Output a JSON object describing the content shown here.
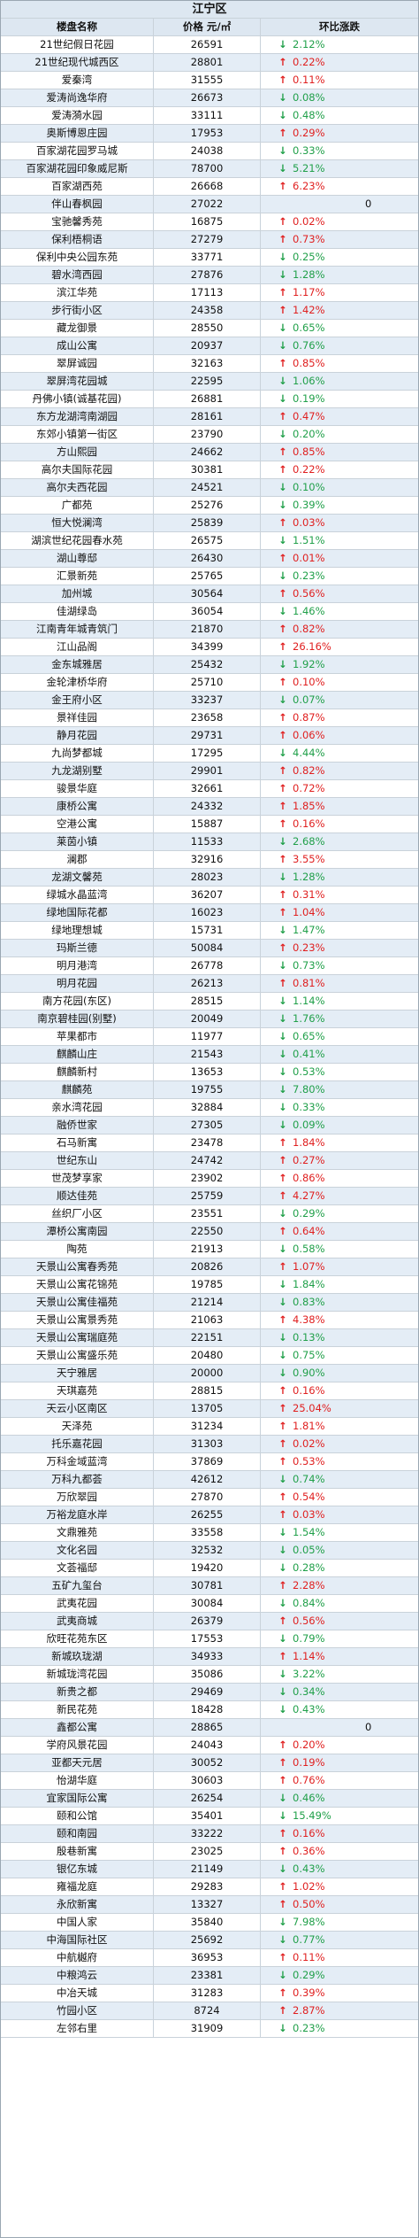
{
  "title": "江宁区",
  "headers": {
    "name": "楼盘名称",
    "price": "价格 元/㎡",
    "change": "环比涨跌"
  },
  "rows": [
    [
      "21世纪假日花园",
      "26591",
      "down",
      "2.12%"
    ],
    [
      "21世纪现代城西区",
      "28801",
      "up",
      "0.22%"
    ],
    [
      "爱秦湾",
      "31555",
      "up",
      "0.11%"
    ],
    [
      "爱涛尚逸华府",
      "26673",
      "down",
      "0.08%"
    ],
    [
      "爱涛漪水园",
      "33111",
      "down",
      "0.48%"
    ],
    [
      "奥斯博恩庄园",
      "17953",
      "up",
      "0.29%"
    ],
    [
      "百家湖花园罗马城",
      "24038",
      "down",
      "0.33%"
    ],
    [
      "百家湖花园印象威尼斯",
      "78700",
      "down",
      "5.21%"
    ],
    [
      "百家湖西苑",
      "26668",
      "up",
      "6.23%"
    ],
    [
      "伴山春枫园",
      "27022",
      "flat",
      "0"
    ],
    [
      "宝驰馨秀苑",
      "16875",
      "up",
      "0.02%"
    ],
    [
      "保利梧桐语",
      "27279",
      "up",
      "0.73%"
    ],
    [
      "保利中央公园东苑",
      "33771",
      "down",
      "0.25%"
    ],
    [
      "碧水湾西园",
      "27876",
      "down",
      "1.28%"
    ],
    [
      "滨江华苑",
      "17113",
      "up",
      "1.17%"
    ],
    [
      "步行街小区",
      "24358",
      "up",
      "1.42%"
    ],
    [
      "藏龙御景",
      "28550",
      "down",
      "0.65%"
    ],
    [
      "成山公寓",
      "20937",
      "down",
      "0.76%"
    ],
    [
      "翠屏诚园",
      "32163",
      "up",
      "0.85%"
    ],
    [
      "翠屏湾花园城",
      "22595",
      "down",
      "1.06%"
    ],
    [
      "丹佛小镇(诚基花园)",
      "26881",
      "down",
      "0.19%"
    ],
    [
      "东方龙湖湾南湖园",
      "28161",
      "up",
      "0.47%"
    ],
    [
      "东郊小镇第一街区",
      "23790",
      "down",
      "0.20%"
    ],
    [
      "方山熙园",
      "24662",
      "up",
      "0.85%"
    ],
    [
      "高尔夫国际花园",
      "30381",
      "up",
      "0.22%"
    ],
    [
      "高尔夫西花园",
      "24521",
      "down",
      "0.10%"
    ],
    [
      "广都苑",
      "25276",
      "down",
      "0.39%"
    ],
    [
      "恒大悦澜湾",
      "25839",
      "up",
      "0.03%"
    ],
    [
      "湖滨世纪花园春水苑",
      "26575",
      "down",
      "1.51%"
    ],
    [
      "湖山尊邸",
      "26430",
      "up",
      "0.01%"
    ],
    [
      "汇景新苑",
      "25765",
      "down",
      "0.23%"
    ],
    [
      "加州城",
      "30564",
      "up",
      "0.56%"
    ],
    [
      "佳湖绿岛",
      "36054",
      "down",
      "1.46%"
    ],
    [
      "江南青年城青筑门",
      "21870",
      "up",
      "0.82%"
    ],
    [
      "江山品阁",
      "34399",
      "up",
      "26.16%"
    ],
    [
      "金东城雅居",
      "25432",
      "down",
      "1.92%"
    ],
    [
      "金轮津桥华府",
      "25710",
      "up",
      "0.10%"
    ],
    [
      "金王府小区",
      "33237",
      "down",
      "0.07%"
    ],
    [
      "景祥佳园",
      "23658",
      "up",
      "0.87%"
    ],
    [
      "静月花园",
      "29731",
      "up",
      "0.06%"
    ],
    [
      "九尚梦都城",
      "17295",
      "down",
      "4.44%"
    ],
    [
      "九龙湖别墅",
      "29901",
      "up",
      "0.82%"
    ],
    [
      "骏景华庭",
      "32661",
      "up",
      "0.72%"
    ],
    [
      "康桥公寓",
      "24332",
      "up",
      "1.85%"
    ],
    [
      "空港公寓",
      "15887",
      "up",
      "0.16%"
    ],
    [
      "莱茵小镇",
      "11533",
      "down",
      "2.68%"
    ],
    [
      "澜郡",
      "32916",
      "up",
      "3.55%"
    ],
    [
      "龙湖文馨苑",
      "28023",
      "down",
      "1.28%"
    ],
    [
      "绿城水晶蓝湾",
      "36207",
      "up",
      "0.31%"
    ],
    [
      "绿地国际花都",
      "16023",
      "up",
      "1.04%"
    ],
    [
      "绿地理想城",
      "15731",
      "down",
      "1.47%"
    ],
    [
      "玛斯兰德",
      "50084",
      "up",
      "0.23%"
    ],
    [
      "明月港湾",
      "26778",
      "down",
      "0.73%"
    ],
    [
      "明月花园",
      "26213",
      "up",
      "0.81%"
    ],
    [
      "南方花园(东区)",
      "28515",
      "down",
      "1.14%"
    ],
    [
      "南京碧桂园(别墅)",
      "20049",
      "down",
      "1.76%"
    ],
    [
      "苹果都市",
      "11977",
      "down",
      "0.65%"
    ],
    [
      "麒麟山庄",
      "21543",
      "down",
      "0.41%"
    ],
    [
      "麒麟新村",
      "13653",
      "down",
      "0.53%"
    ],
    [
      "麒麟苑",
      "19755",
      "down",
      "7.80%"
    ],
    [
      "亲水湾花园",
      "32884",
      "down",
      "0.33%"
    ],
    [
      "融侨世家",
      "27305",
      "down",
      "0.09%"
    ],
    [
      "石马新寓",
      "23478",
      "up",
      "1.84%"
    ],
    [
      "世纪东山",
      "24742",
      "up",
      "0.27%"
    ],
    [
      "世茂梦享家",
      "23902",
      "up",
      "0.86%"
    ],
    [
      "顺达佳苑",
      "25759",
      "up",
      "4.27%"
    ],
    [
      "丝织厂小区",
      "23551",
      "down",
      "0.29%"
    ],
    [
      "潭桥公寓南园",
      "22550",
      "up",
      "0.64%"
    ],
    [
      "陶苑",
      "21913",
      "down",
      "0.58%"
    ],
    [
      "天景山公寓春秀苑",
      "20826",
      "up",
      "1.07%"
    ],
    [
      "天景山公寓花锦苑",
      "19785",
      "down",
      "1.84%"
    ],
    [
      "天景山公寓佳福苑",
      "21214",
      "down",
      "0.83%"
    ],
    [
      "天景山公寓景秀苑",
      "21063",
      "up",
      "4.38%"
    ],
    [
      "天景山公寓瑞庭苑",
      "22151",
      "down",
      "0.13%"
    ],
    [
      "天景山公寓盛乐苑",
      "20480",
      "down",
      "0.75%"
    ],
    [
      "天宁雅居",
      "20000",
      "down",
      "0.90%"
    ],
    [
      "天琪嘉苑",
      "28815",
      "up",
      "0.16%"
    ],
    [
      "天云小区南区",
      "13705",
      "up",
      "25.04%"
    ],
    [
      "天泽苑",
      "31234",
      "up",
      "1.81%"
    ],
    [
      "托乐嘉花园",
      "31303",
      "up",
      "0.02%"
    ],
    [
      "万科金域蓝湾",
      "37869",
      "up",
      "0.53%"
    ],
    [
      "万科九都荟",
      "42612",
      "down",
      "0.74%"
    ],
    [
      "万欣翠园",
      "27870",
      "up",
      "0.54%"
    ],
    [
      "万裕龙庭水岸",
      "26255",
      "up",
      "0.03%"
    ],
    [
      "文鼎雅苑",
      "33558",
      "down",
      "1.54%"
    ],
    [
      "文化名园",
      "32532",
      "down",
      "0.05%"
    ],
    [
      "文荟福邸",
      "19420",
      "down",
      "0.28%"
    ],
    [
      "五矿九玺台",
      "30781",
      "up",
      "2.28%"
    ],
    [
      "武夷花园",
      "30084",
      "down",
      "0.84%"
    ],
    [
      "武夷商城",
      "26379",
      "up",
      "0.56%"
    ],
    [
      "欣旺花苑东区",
      "17553",
      "down",
      "0.79%"
    ],
    [
      "新城玖珑湖",
      "34933",
      "up",
      "1.14%"
    ],
    [
      "新城珑湾花园",
      "35086",
      "down",
      "3.22%"
    ],
    [
      "新贵之都",
      "29469",
      "down",
      "0.34%"
    ],
    [
      "新民花苑",
      "18428",
      "down",
      "0.43%"
    ],
    [
      "鑫都公寓",
      "28865",
      "flat",
      "0"
    ],
    [
      "学府风景花园",
      "24043",
      "up",
      "0.20%"
    ],
    [
      "亚都天元居",
      "30052",
      "up",
      "0.19%"
    ],
    [
      "怡湖华庭",
      "30603",
      "up",
      "0.76%"
    ],
    [
      "宜家国际公寓",
      "26254",
      "down",
      "0.46%"
    ],
    [
      "颐和公馆",
      "35401",
      "down",
      "15.49%"
    ],
    [
      "颐和南园",
      "33222",
      "up",
      "0.16%"
    ],
    [
      "殷巷新寓",
      "23025",
      "up",
      "0.36%"
    ],
    [
      "银亿东城",
      "21149",
      "down",
      "0.43%"
    ],
    [
      "雍福龙庭",
      "29283",
      "up",
      "1.02%"
    ],
    [
      "永欣新寓",
      "13327",
      "up",
      "0.50%"
    ],
    [
      "中国人家",
      "35840",
      "down",
      "7.98%"
    ],
    [
      "中海国际社区",
      "25692",
      "down",
      "0.77%"
    ],
    [
      "中航樾府",
      "36953",
      "up",
      "0.11%"
    ],
    [
      "中粮鸿云",
      "23381",
      "down",
      "0.29%"
    ],
    [
      "中冶天城",
      "31283",
      "up",
      "0.39%"
    ],
    [
      "竹园小区",
      "8724",
      "up",
      "2.87%"
    ],
    [
      "左邻右里",
      "31909",
      "down",
      "0.23%"
    ]
  ]
}
